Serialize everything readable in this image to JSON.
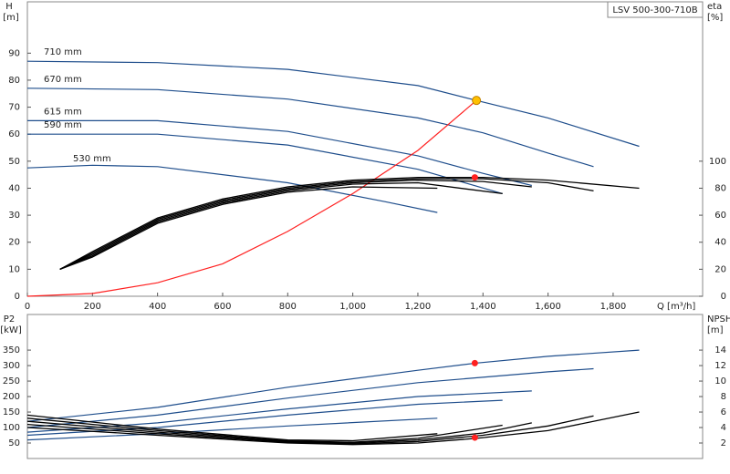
{
  "chart_data": [
    {
      "type": "line",
      "title": "LSV 500-300-710B",
      "y_label": "H",
      "y_unit": "[m]",
      "y2_label": "eta",
      "y2_unit": "[%]",
      "x_label": "Q [m³/h]",
      "xlim": [
        0,
        2075
      ],
      "ylim": [
        0,
        109
      ],
      "y2lim": [
        0,
        218
      ],
      "xticks": [
        0,
        200,
        400,
        600,
        800,
        {
          "value": 1000,
          "label": "1,000"
        },
        {
          "value": 1200,
          "label": "1,200"
        },
        {
          "value": 1400,
          "label": "1,400"
        },
        {
          "value": 1600,
          "label": "1,600"
        },
        {
          "value": 1800,
          "label": "1,800"
        }
      ],
      "yticks": [
        0,
        10,
        20,
        30,
        40,
        50,
        60,
        70,
        80,
        90
      ],
      "y2ticks": [
        0,
        20,
        40,
        60,
        80,
        100
      ],
      "series": [
        {
          "name": "710 mm",
          "color": "#1f4e8c",
          "x": [
            0,
            400,
            800,
            1200,
            1380,
            1600,
            1880
          ],
          "values": [
            87,
            86.5,
            84,
            78,
            72.5,
            66,
            55.5
          ]
        },
        {
          "name": "670 mm",
          "color": "#1f4e8c",
          "x": [
            0,
            400,
            800,
            1200,
            1400,
            1600,
            1740
          ],
          "values": [
            77,
            76.5,
            73,
            66,
            60.5,
            53,
            48
          ]
        },
        {
          "name": "615 mm",
          "color": "#1f4e8c",
          "x": [
            0,
            400,
            800,
            1200,
            1400,
            1550
          ],
          "values": [
            65,
            65,
            61,
            52,
            45.5,
            41
          ]
        },
        {
          "name": "590 mm",
          "color": "#1f4e8c",
          "x": [
            0,
            400,
            800,
            1200,
            1460
          ],
          "values": [
            60,
            60,
            56,
            47,
            38
          ]
        },
        {
          "name": "530 mm",
          "color": "#1f4e8c",
          "x": [
            0,
            200,
            400,
            800,
            1100,
            1260
          ],
          "values": [
            47.5,
            48.5,
            48,
            42,
            35,
            31
          ]
        },
        {
          "color": "#ff2020",
          "x": [
            0,
            200,
            400,
            600,
            800,
            1000,
            1200,
            1380
          ],
          "values": [
            0,
            1,
            5,
            12,
            24,
            38,
            54,
            72.5
          ]
        },
        {
          "color": "#000000",
          "axis": "y2",
          "x": [
            100,
            200,
            400,
            600,
            800,
            1000,
            1200,
            1400,
            1600,
            1880
          ],
          "values": [
            20,
            33,
            58,
            72,
            81,
            86,
            88,
            88,
            86,
            80
          ]
        },
        {
          "color": "#000000",
          "axis": "y2",
          "x": [
            100,
            200,
            400,
            600,
            800,
            1000,
            1200,
            1400,
            1600,
            1740
          ],
          "values": [
            20,
            32,
            57,
            71,
            80,
            85,
            87,
            87,
            84,
            78
          ]
        },
        {
          "color": "#000000",
          "axis": "y2",
          "x": [
            100,
            200,
            400,
            600,
            800,
            1000,
            1200,
            1400,
            1550
          ],
          "values": [
            20,
            31,
            56,
            70,
            79,
            84,
            86,
            85,
            81
          ]
        },
        {
          "color": "#000000",
          "axis": "y2",
          "x": [
            100,
            200,
            400,
            600,
            800,
            1000,
            1200,
            1460
          ],
          "values": [
            20,
            30,
            55,
            69,
            78,
            83,
            84,
            76
          ]
        },
        {
          "color": "#000000",
          "axis": "y2",
          "x": [
            100,
            200,
            400,
            600,
            800,
            1000,
            1260
          ],
          "values": [
            20,
            29,
            54,
            68,
            77,
            81,
            80
          ]
        }
      ],
      "markers": [
        {
          "x": 1380,
          "y": 72.5,
          "color": "#ffc000"
        },
        {
          "x": 1375,
          "y": 88,
          "axis": "y2",
          "color": "#ff2020"
        }
      ]
    },
    {
      "type": "line",
      "y_label": "P2",
      "y_unit": "[kW]",
      "y2_label": "NPSH",
      "y2_unit": "[m]",
      "xlim": [
        0,
        2075
      ],
      "ylim": [
        0,
        465
      ],
      "y2lim": [
        0,
        18.6
      ],
      "yticks": [
        50,
        100,
        150,
        200,
        250,
        300,
        350
      ],
      "y2ticks": [
        2,
        4,
        6,
        8,
        10,
        12,
        14
      ],
      "series": [
        {
          "color": "#1f4e8c",
          "x": [
            0,
            400,
            800,
            1200,
            1380,
            1600,
            1880
          ],
          "values": [
            120,
            165,
            230,
            285,
            308,
            330,
            350
          ]
        },
        {
          "color": "#1f4e8c",
          "x": [
            0,
            400,
            800,
            1200,
            1600,
            1740
          ],
          "values": [
            100,
            140,
            195,
            245,
            280,
            290
          ]
        },
        {
          "color": "#1f4e8c",
          "x": [
            0,
            400,
            800,
            1200,
            1550
          ],
          "values": [
            85,
            115,
            160,
            200,
            218
          ]
        },
        {
          "color": "#1f4e8c",
          "x": [
            0,
            400,
            800,
            1200,
            1460
          ],
          "values": [
            75,
            100,
            140,
            175,
            188
          ]
        },
        {
          "color": "#1f4e8c",
          "x": [
            0,
            400,
            800,
            1260
          ],
          "values": [
            60,
            80,
            105,
            130
          ]
        },
        {
          "color": "#000000",
          "axis": "y2",
          "x": [
            0,
            400,
            800,
            1000,
            1200,
            1380,
            1600,
            1880
          ],
          "values": [
            4,
            3,
            2,
            1.8,
            2,
            2.6,
            3.6,
            6
          ]
        },
        {
          "color": "#000000",
          "axis": "y2",
          "x": [
            0,
            400,
            800,
            1000,
            1200,
            1400,
            1600,
            1740
          ],
          "values": [
            4.4,
            3.2,
            2.1,
            1.9,
            2.2,
            3,
            4.2,
            5.5
          ]
        },
        {
          "color": "#000000",
          "axis": "y2",
          "x": [
            0,
            400,
            800,
            1000,
            1200,
            1400,
            1550
          ],
          "values": [
            4.8,
            3.4,
            2.2,
            2,
            2.4,
            3.3,
            4.6
          ]
        },
        {
          "color": "#000000",
          "axis": "y2",
          "x": [
            0,
            400,
            800,
            1000,
            1200,
            1460
          ],
          "values": [
            5.2,
            3.6,
            2.3,
            2.1,
            2.6,
            4.3
          ]
        },
        {
          "color": "#000000",
          "axis": "y2",
          "x": [
            0,
            400,
            800,
            1000,
            1260
          ],
          "values": [
            5.6,
            3.8,
            2.4,
            2.3,
            3.2
          ]
        }
      ],
      "markers": [
        {
          "x": 1375,
          "y": 308,
          "color": "#ff2020"
        },
        {
          "x": 1375,
          "y": 2.7,
          "axis": "y2",
          "color": "#ff2020"
        }
      ]
    }
  ]
}
